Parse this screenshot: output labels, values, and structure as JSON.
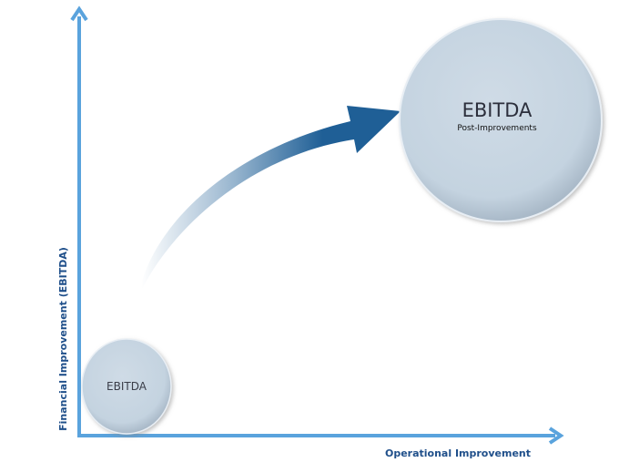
{
  "axes": {
    "x_label": "Operational Improvement",
    "y_label": "Financial Improvement (EBITDA)",
    "color": "#5aa3dd",
    "label_color": "#1f4f8a"
  },
  "nodes": {
    "before": {
      "title": "EBITDA"
    },
    "after": {
      "title": "EBITDA",
      "subtitle": "Post-Improvements"
    }
  },
  "arrow": {
    "color": "#1f5f96"
  }
}
